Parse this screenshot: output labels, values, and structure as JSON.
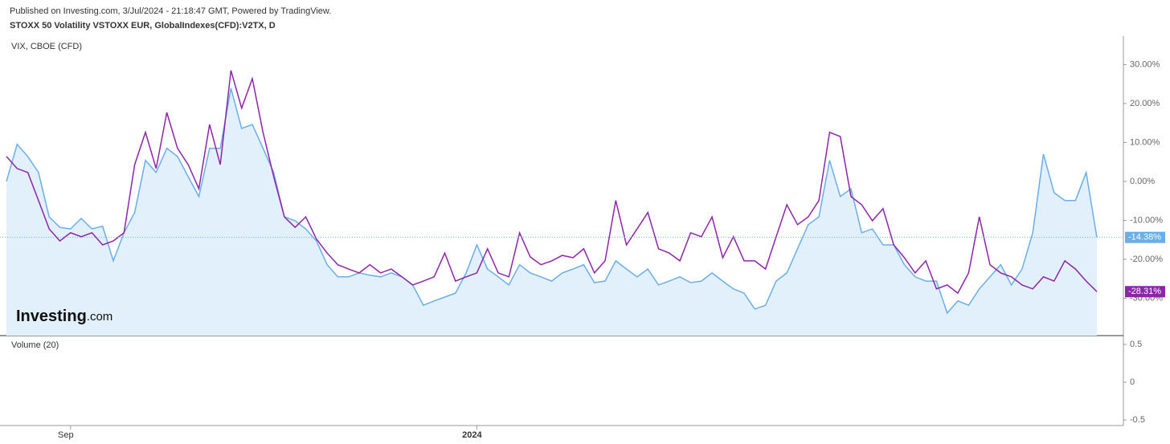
{
  "published": "Published on Investing.com, 3/Jul/2024 - 21:18:47 GMT, Powered by TradingView.",
  "logo": {
    "brand": "Investing",
    "suffix": ".com"
  },
  "chart_data": [
    {
      "type": "line",
      "title": "STOXX 50 Volatility VSTOXX EUR, GlobalIndexes(CFD):V2TX, D",
      "categories": [
        null,
        null,
        null,
        null,
        null,
        null,
        "Sep",
        null,
        null,
        null,
        null,
        null,
        null,
        null,
        null,
        null,
        null,
        null,
        null,
        null,
        null,
        null,
        null,
        null,
        null,
        null,
        null,
        null,
        null,
        null,
        null,
        null,
        null,
        null,
        null,
        null,
        null,
        null,
        null,
        null,
        null,
        null,
        null,
        null,
        "2024",
        null,
        null,
        null,
        null,
        null,
        null,
        null,
        null,
        null,
        null,
        null,
        null,
        null,
        null,
        null,
        null,
        null,
        null,
        null,
        null,
        null,
        null,
        null,
        null,
        null,
        null,
        null,
        null,
        null,
        null,
        null,
        null,
        null,
        null,
        null,
        null,
        null,
        null,
        null,
        null,
        null,
        null,
        null,
        null,
        null,
        null,
        null,
        null,
        null,
        null,
        null,
        null,
        null,
        null,
        null,
        null,
        null,
        null
      ],
      "series": [
        {
          "color": "#6aaee8",
          "area": true,
          "values": [
            0,
            9.5,
            6.4,
            2.3,
            -9.1,
            -11.8,
            -12.2,
            -9.5,
            -12.2,
            -11.5,
            -20.4,
            -13.2,
            -8.0,
            5.4,
            2.3,
            8.5,
            6.4,
            1.2,
            -3.9,
            8.5,
            8.5,
            23.9,
            13.6,
            14.6,
            8.5,
            2.3,
            -9.1,
            -10.1,
            -12.2,
            -15.3,
            -21.4,
            -24.5,
            -24.5,
            -23.5,
            -24.1,
            -24.5,
            -23.5,
            -24.5,
            -26.6,
            -31.8,
            -30.7,
            -29.7,
            -28.7,
            -23.5,
            -16.3,
            -22.5,
            -24.5,
            -26.6,
            -21.4,
            -23.5,
            -24.5,
            -25.6,
            -23.5,
            -22.5,
            -21.4,
            -26.0,
            -25.6,
            -20.4,
            -22.5,
            -24.5,
            -22.5,
            -26.6,
            -25.6,
            -24.5,
            -26.0,
            -25.6,
            -23.5,
            -25.6,
            -27.6,
            -28.7,
            -32.8,
            -31.8,
            -25.6,
            -23.5,
            -17.3,
            -11.1,
            -9.1,
            5.4,
            -3.9,
            -1.9,
            -13.2,
            -12.2,
            -16.3,
            -16.3,
            -21.4,
            -24.5,
            -25.6,
            -25.6,
            -33.8,
            -30.7,
            -31.8,
            -27.6,
            -24.5,
            -21.4,
            -26.6,
            -22.5,
            -13.2,
            7.0,
            -2.9,
            -4.9,
            -4.9,
            2.3,
            -14.38
          ],
          "value_labels": [
            null,
            null,
            null,
            null,
            null,
            null,
            null,
            null,
            null,
            null,
            null,
            null,
            null,
            null,
            null,
            null,
            null,
            null,
            null,
            null,
            null,
            null,
            null,
            null,
            null,
            null,
            null,
            null,
            null,
            null,
            null,
            null,
            null,
            null,
            null,
            null,
            null,
            null,
            null,
            null,
            null,
            null,
            null,
            null,
            null,
            null,
            null,
            null,
            null,
            null,
            null,
            null,
            null,
            null,
            null,
            null,
            null,
            null,
            null,
            null,
            null,
            null,
            null,
            null,
            null,
            null,
            null,
            null,
            null,
            null,
            null,
            null,
            null,
            null,
            null,
            null,
            null,
            null,
            null,
            null,
            null,
            null,
            null,
            null,
            null,
            null,
            null,
            null,
            null,
            null,
            null,
            null,
            null,
            null,
            null,
            null,
            null,
            null,
            null,
            null,
            null,
            null,
            "-14.38%"
          ]
        },
        {
          "name": "VIX, CBOE (CFD)",
          "color": "#8e24aa",
          "area": false,
          "values": [
            6.4,
            3.3,
            2.3,
            -4.9,
            -12.2,
            -15.3,
            -13.2,
            -14.2,
            -13.2,
            -16.3,
            -15.3,
            -13.2,
            4.3,
            12.6,
            3.3,
            17.7,
            8.5,
            4.3,
            -1.9,
            14.6,
            4.3,
            28.5,
            18.8,
            26.4,
            12.6,
            1.2,
            -9.1,
            -11.8,
            -9.1,
            -14.8,
            -18.4,
            -21.4,
            -22.5,
            -23.5,
            -21.4,
            -23.5,
            -22.5,
            -24.5,
            -26.6,
            -25.6,
            -24.5,
            -18.4,
            -25.6,
            -24.5,
            -23.5,
            -17.3,
            -23.5,
            -24.5,
            -13.2,
            -19.4,
            -21.4,
            -20.4,
            -19.0,
            -19.6,
            -17.3,
            -23.5,
            -20.4,
            -4.9,
            -16.3,
            -12.2,
            -8.0,
            -17.3,
            -18.4,
            -20.4,
            -13.2,
            -14.2,
            -9.1,
            -19.6,
            -14.2,
            -20.4,
            -20.4,
            -22.5,
            -14.2,
            -6.0,
            -11.1,
            -9.1,
            -4.9,
            12.6,
            11.5,
            -3.9,
            -6.0,
            -10.1,
            -7.0,
            -16.3,
            -19.6,
            -23.5,
            -20.4,
            -27.6,
            -26.6,
            -28.7,
            -23.5,
            -9.1,
            -21.4,
            -23.5,
            -24.5,
            -26.6,
            -27.6,
            -24.5,
            -25.6,
            -20.4,
            -22.5,
            -25.6,
            -28.31
          ],
          "value_labels": [
            null,
            null,
            null,
            null,
            null,
            null,
            null,
            null,
            null,
            null,
            null,
            null,
            null,
            null,
            null,
            null,
            null,
            null,
            null,
            null,
            null,
            null,
            null,
            null,
            null,
            null,
            null,
            null,
            null,
            null,
            null,
            null,
            null,
            null,
            null,
            null,
            null,
            null,
            null,
            null,
            null,
            null,
            null,
            null,
            null,
            null,
            null,
            null,
            null,
            null,
            null,
            null,
            null,
            null,
            null,
            null,
            null,
            null,
            null,
            null,
            null,
            null,
            null,
            null,
            null,
            null,
            null,
            null,
            null,
            null,
            null,
            null,
            null,
            null,
            null,
            null,
            null,
            null,
            null,
            null,
            null,
            null,
            null,
            null,
            null,
            null,
            null,
            null,
            null,
            null,
            null,
            null,
            null,
            null,
            null,
            null,
            null,
            null,
            null,
            null,
            null,
            null,
            "-28.31%"
          ]
        }
      ],
      "ylim": [
        -39.6,
        37.3
      ],
      "yticks": [
        {
          "value": -30,
          "label": "-30.00%"
        },
        {
          "value": -20,
          "label": "-20.00%"
        },
        {
          "value": -10,
          "label": "-10.00%"
        },
        {
          "value": 0,
          "label": "0.00%"
        },
        {
          "value": 10,
          "label": "10.00%"
        },
        {
          "value": 20,
          "label": "20.00%"
        },
        {
          "value": 30,
          "label": "30.00%"
        }
      ]
    },
    {
      "type": "bar",
      "title": "Volume (20)",
      "ylim": [
        -0.574,
        0.617
      ],
      "yticks": [
        0.5,
        0,
        -0.5
      ]
    }
  ]
}
